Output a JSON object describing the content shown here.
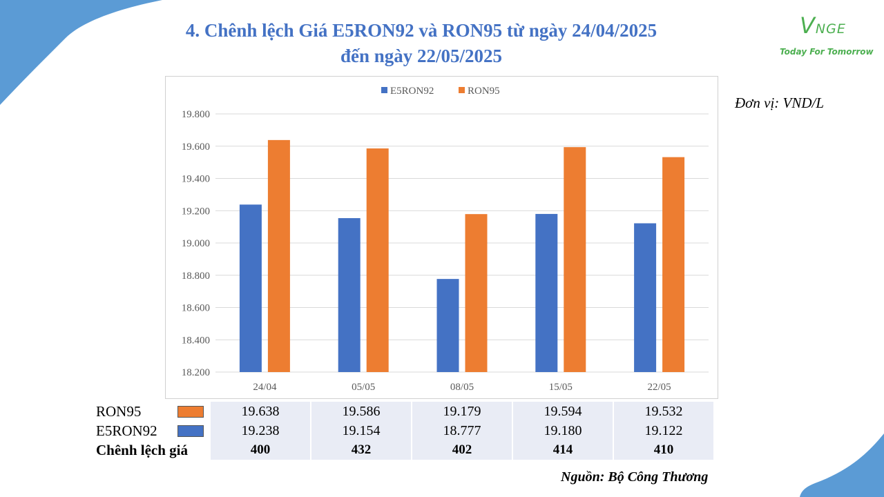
{
  "title_line1": "4. Chênh lệch Giá E5RON92 và RON95 từ ngày 24/04/2025",
  "title_line2": "đến ngày 22/05/2025",
  "logo": {
    "mark": "VNGE",
    "tagline": "Today For Tomorrow",
    "color": "#4caf50"
  },
  "unit_label": "Đơn vị: VND/L",
  "source_label": "Nguồn: Bộ Công Thương",
  "colors": {
    "accent": "#4472c4",
    "ron95": "#ed7d31",
    "e5ron92": "#4472c4"
  },
  "chart_data": {
    "type": "bar",
    "categories": [
      "24/04",
      "05/05",
      "08/05",
      "15/05",
      "22/05"
    ],
    "series": [
      {
        "name": "E5RON92",
        "color": "#4472c4",
        "values": [
          19238,
          19154,
          18777,
          19180,
          19122
        ]
      },
      {
        "name": "RON95",
        "color": "#ed7d31",
        "values": [
          19638,
          19586,
          19179,
          19594,
          19532
        ]
      }
    ],
    "yticks": [
      "18.200",
      "18.400",
      "18.600",
      "18.800",
      "19.000",
      "19.200",
      "19.400",
      "19.600",
      "19.800"
    ],
    "ylim": [
      18200,
      19800
    ],
    "grid": true,
    "legend_position": "top"
  },
  "table": {
    "rows": [
      {
        "label": "RON95",
        "color": "#ed7d31",
        "values": [
          "19.638",
          "19.586",
          "19.179",
          "19.594",
          "19.532"
        ]
      },
      {
        "label": "E5RON92",
        "color": "#4472c4",
        "values": [
          "19.238",
          "19.154",
          "18.777",
          "19.180",
          "19.122"
        ]
      },
      {
        "label": "Chênh lệch giá",
        "values": [
          "400",
          "432",
          "402",
          "414",
          "410"
        ]
      }
    ]
  }
}
